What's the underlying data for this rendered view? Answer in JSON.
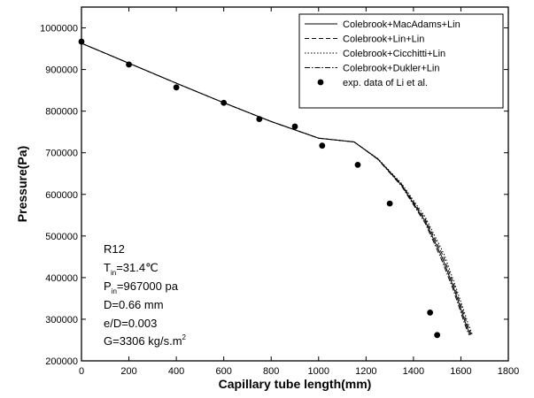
{
  "chart_data": {
    "type": "line",
    "title": "",
    "xlabel": "Capillary tube length(mm)",
    "ylabel": "Pressure(Pa)",
    "xlim": [
      0,
      1800
    ],
    "ylim": [
      200000,
      1050000
    ],
    "xticks": [
      0,
      200,
      400,
      600,
      800,
      1000,
      1200,
      1400,
      1600,
      1800
    ],
    "yticks": [
      200000,
      300000,
      400000,
      500000,
      600000,
      700000,
      800000,
      900000,
      1000000
    ],
    "grid": false,
    "legend_position": "top-right",
    "series": [
      {
        "name": "Colebrook+MacAdams+Lin",
        "style": "solid",
        "x": [
          0,
          200,
          400,
          600,
          800,
          1000,
          1150,
          1250,
          1350,
          1450,
          1520,
          1570,
          1600,
          1620,
          1635,
          1640
        ],
        "y": [
          963000,
          915000,
          867000,
          820000,
          775000,
          735000,
          726000,
          685000,
          622000,
          535000,
          450000,
          375000,
          325000,
          290000,
          268000,
          262000
        ]
      },
      {
        "name": "Colebrook+Lin+Lin",
        "style": "dashed",
        "x": [
          0,
          200,
          400,
          600,
          800,
          1000,
          1150,
          1250,
          1350,
          1450,
          1525,
          1575,
          1605,
          1625,
          1640,
          1645
        ],
        "y": [
          963000,
          915000,
          867000,
          820000,
          775000,
          735000,
          726000,
          685000,
          624000,
          540000,
          452000,
          375000,
          325000,
          290000,
          268000,
          262000
        ]
      },
      {
        "name": "Colebrook+Cicchitti+Lin",
        "style": "dotted",
        "x": [
          0,
          200,
          400,
          600,
          800,
          1000,
          1150,
          1250,
          1350,
          1450,
          1530,
          1580,
          1610,
          1630,
          1645,
          1650
        ],
        "y": [
          963000,
          915000,
          867000,
          820000,
          775000,
          735000,
          726000,
          686000,
          626000,
          545000,
          455000,
          375000,
          325000,
          290000,
          268000,
          262000
        ]
      },
      {
        "name": "Colebrook+Dukler+Lin",
        "style": "dashdot",
        "x": [
          0,
          200,
          400,
          600,
          800,
          1000,
          1150,
          1250,
          1350,
          1450,
          1515,
          1565,
          1595,
          1615,
          1630,
          1635
        ],
        "y": [
          963000,
          915000,
          867000,
          820000,
          775000,
          735000,
          726000,
          684000,
          620000,
          530000,
          448000,
          375000,
          325000,
          290000,
          268000,
          262000
        ]
      },
      {
        "name": "exp. data of Li et al.",
        "style": "markers",
        "x": [
          0,
          200,
          400,
          600,
          750,
          900,
          1015,
          1165,
          1300,
          1470,
          1500
        ],
        "y": [
          967000,
          912000,
          857000,
          820000,
          781000,
          763000,
          717000,
          671000,
          578000,
          316000,
          262000
        ]
      }
    ],
    "annotations": [
      {
        "text": "R12"
      },
      {
        "main": "T",
        "sub": "in",
        "rest": "=31.4℃"
      },
      {
        "main": "P",
        "sub": "in",
        "rest": "=967000 pa"
      },
      {
        "text": "D=0.66 mm"
      },
      {
        "text": "e/D=0.003"
      },
      {
        "text": "G=3306 kg/s.m",
        "sup": "2"
      }
    ]
  }
}
